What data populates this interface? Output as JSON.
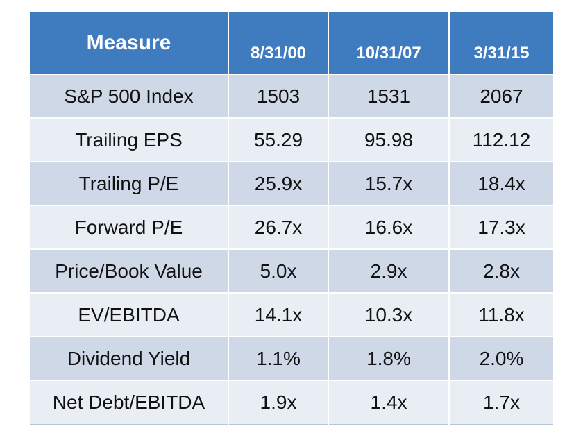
{
  "chart_data": {
    "type": "table",
    "columns": [
      "Measure",
      "8/31/00",
      "10/31/07",
      "3/31/15"
    ],
    "rows": [
      {
        "label": "S&P 500 Index",
        "values": [
          "1503",
          "1531",
          "2067"
        ]
      },
      {
        "label": "Trailing EPS",
        "values": [
          "55.29",
          "95.98",
          "112.12"
        ]
      },
      {
        "label": "Trailing P/E",
        "values": [
          "25.9x",
          "15.7x",
          "18.4x"
        ]
      },
      {
        "label": "Forward P/E",
        "values": [
          "26.7x",
          "16.6x",
          "17.3x"
        ]
      },
      {
        "label": "Price/Book Value",
        "values": [
          "5.0x",
          "2.9x",
          "2.8x"
        ]
      },
      {
        "label": "EV/EBITDA",
        "values": [
          "14.1x",
          "10.3x",
          "11.8x"
        ]
      },
      {
        "label": "Dividend Yield",
        "values": [
          "1.1%",
          "1.8%",
          "2.0%"
        ]
      },
      {
        "label": "Net Debt/EBITDA",
        "values": [
          "1.9x",
          "1.4x",
          "1.7x"
        ]
      }
    ],
    "colors": {
      "header_bg": "#3e7cbf",
      "header_text": "#ffffff",
      "row_dark": "#cfd8e7",
      "row_light": "#e9edf4"
    }
  }
}
